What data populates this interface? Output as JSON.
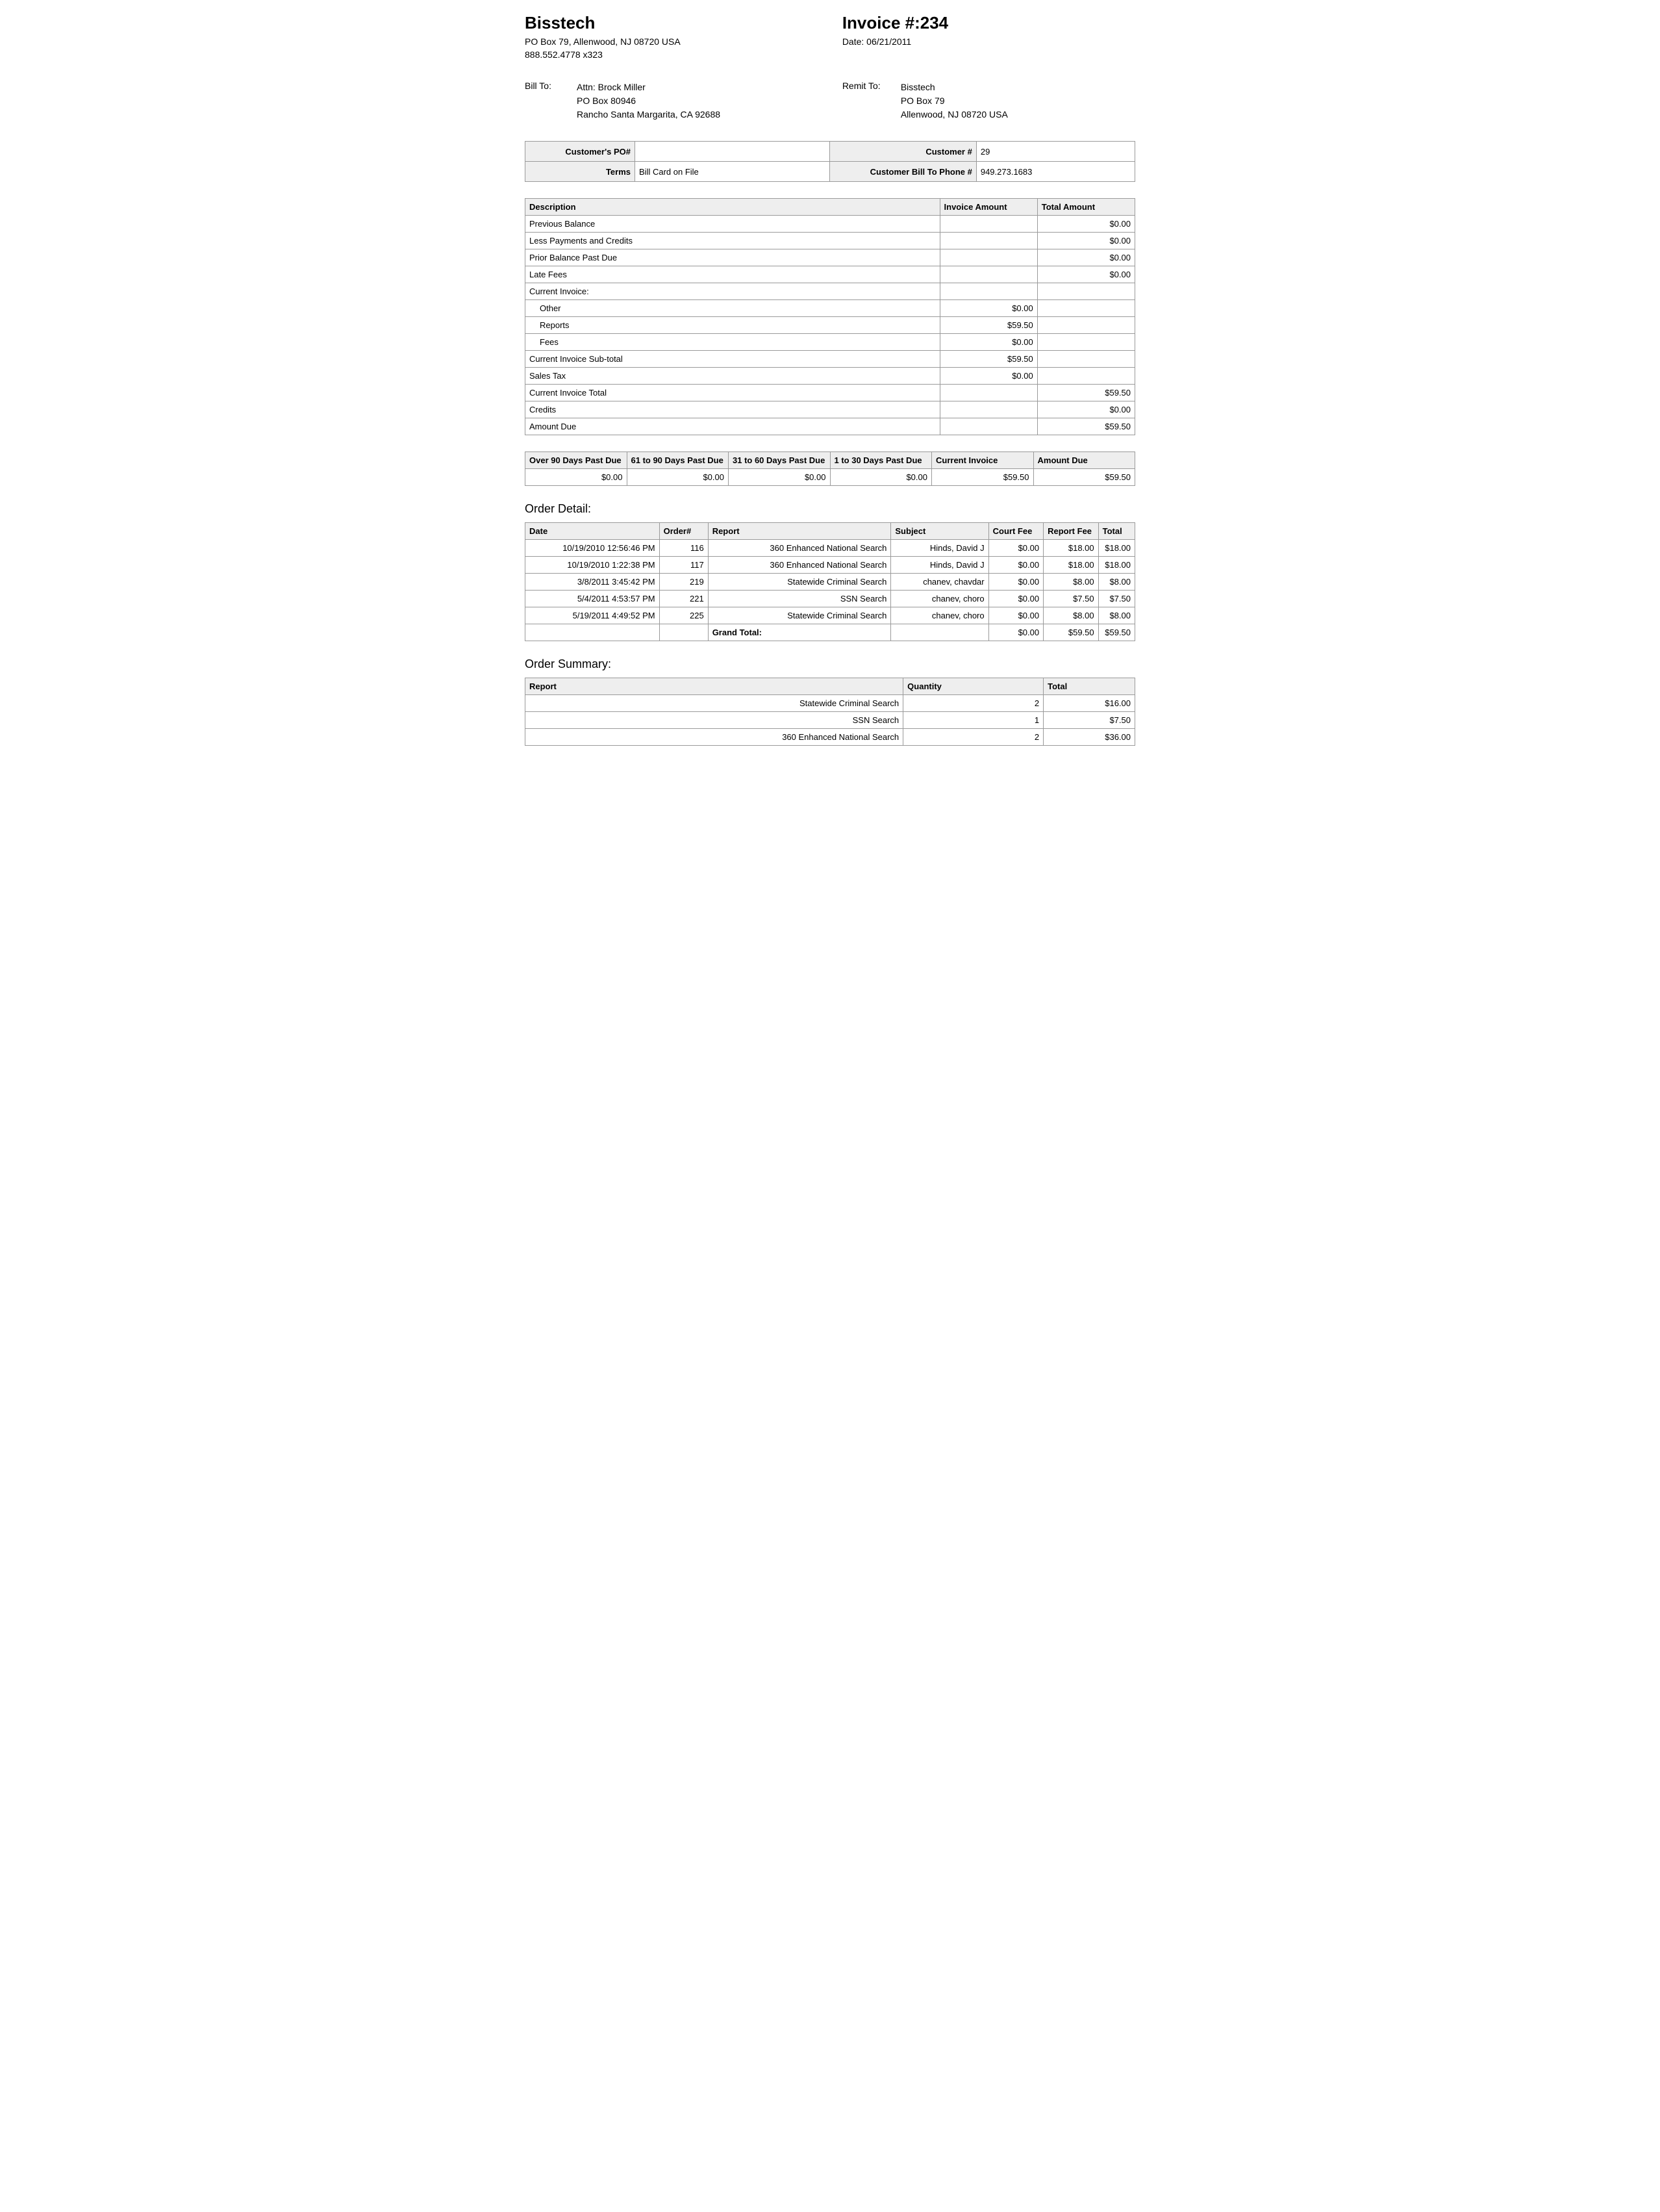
{
  "vendor": {
    "name": "Bisstech",
    "addr1": "PO Box 79, Allenwood, NJ 08720 USA",
    "phone": "888.552.4778 x323"
  },
  "invoice": {
    "title": "Invoice #:234",
    "date_label": "Date: 06/21/2011"
  },
  "bill_to": {
    "label": "Bill To:",
    "line1": "Attn: Brock Miller",
    "line2": "PO Box 80946",
    "line3": "Rancho Santa Margarita, CA 92688"
  },
  "remit_to": {
    "label": "Remit To:",
    "line1": "Bisstech",
    "line2": "PO Box 79",
    "line3": "Allenwood, NJ 08720 USA"
  },
  "info": {
    "po_label": "Customer's PO#",
    "po_value": "",
    "cust_num_label": "Customer #",
    "cust_num_value": "29",
    "terms_label": "Terms",
    "terms_value": "Bill Card on File",
    "phone_label": "Customer Bill To Phone #",
    "phone_value": "949.273.1683"
  },
  "summary_table": {
    "headers": {
      "desc": "Description",
      "inv_amt": "Invoice Amount",
      "tot_amt": "Total Amount"
    },
    "rows": [
      {
        "desc": "Previous Balance",
        "inv": "",
        "tot": "$0.00"
      },
      {
        "desc": "Less Payments and Credits",
        "inv": "",
        "tot": "$0.00"
      },
      {
        "desc": "Prior Balance Past Due",
        "inv": "",
        "tot": "$0.00"
      },
      {
        "desc": "Late Fees",
        "inv": "",
        "tot": "$0.00"
      },
      {
        "desc": "Current Invoice:",
        "inv": "",
        "tot": ""
      },
      {
        "desc": "Other",
        "inv": "$0.00",
        "tot": "",
        "indent": true
      },
      {
        "desc": "Reports",
        "inv": "$59.50",
        "tot": "",
        "indent": true
      },
      {
        "desc": "Fees",
        "inv": "$0.00",
        "tot": "",
        "indent": true
      },
      {
        "desc": "Current Invoice Sub-total",
        "inv": "$59.50",
        "tot": ""
      },
      {
        "desc": "Sales Tax",
        "inv": "$0.00",
        "tot": ""
      },
      {
        "desc": "Current Invoice Total",
        "inv": "",
        "tot": "$59.50"
      },
      {
        "desc": "Credits",
        "inv": "",
        "tot": "$0.00"
      },
      {
        "desc": "Amount Due",
        "inv": "",
        "tot": "$59.50"
      }
    ]
  },
  "aging": {
    "headers": [
      "Over 90 Days Past Due",
      "61 to 90 Days Past Due",
      "31 to 60 Days Past Due",
      "1 to 30 Days Past Due",
      "Current Invoice",
      "Amount Due"
    ],
    "values": [
      "$0.00",
      "$0.00",
      "$0.00",
      "$0.00",
      "$59.50",
      "$59.50"
    ]
  },
  "order_detail": {
    "title": "Order Detail:",
    "headers": [
      "Date",
      "Order#",
      "Report",
      "Subject",
      "Court Fee",
      "Report Fee",
      "Total"
    ],
    "rows": [
      [
        "10/19/2010 12:56:46 PM",
        "116",
        "360 Enhanced National Search",
        "Hinds, David J",
        "$0.00",
        "$18.00",
        "$18.00"
      ],
      [
        "10/19/2010 1:22:38 PM",
        "117",
        "360 Enhanced National Search",
        "Hinds, David J",
        "$0.00",
        "$18.00",
        "$18.00"
      ],
      [
        "3/8/2011 3:45:42 PM",
        "219",
        "Statewide Criminal Search",
        "chanev, chavdar",
        "$0.00",
        "$8.00",
        "$8.00"
      ],
      [
        "5/4/2011 4:53:57 PM",
        "221",
        "SSN Search",
        "chanev, choro",
        "$0.00",
        "$7.50",
        "$7.50"
      ],
      [
        "5/19/2011 4:49:52 PM",
        "225",
        "Statewide Criminal Search",
        "chanev, choro",
        "$0.00",
        "$8.00",
        "$8.00"
      ]
    ],
    "grand_total_label": "Grand Total:",
    "grand_total": [
      "$0.00",
      "$59.50",
      "$59.50"
    ]
  },
  "order_summary": {
    "title": "Order Summary:",
    "headers": [
      "Report",
      "Quantity",
      "Total"
    ],
    "rows": [
      [
        "Statewide Criminal Search",
        "2",
        "$16.00"
      ],
      [
        "SSN Search",
        "1",
        "$7.50"
      ],
      [
        "360 Enhanced National Search",
        "2",
        "$36.00"
      ]
    ]
  }
}
